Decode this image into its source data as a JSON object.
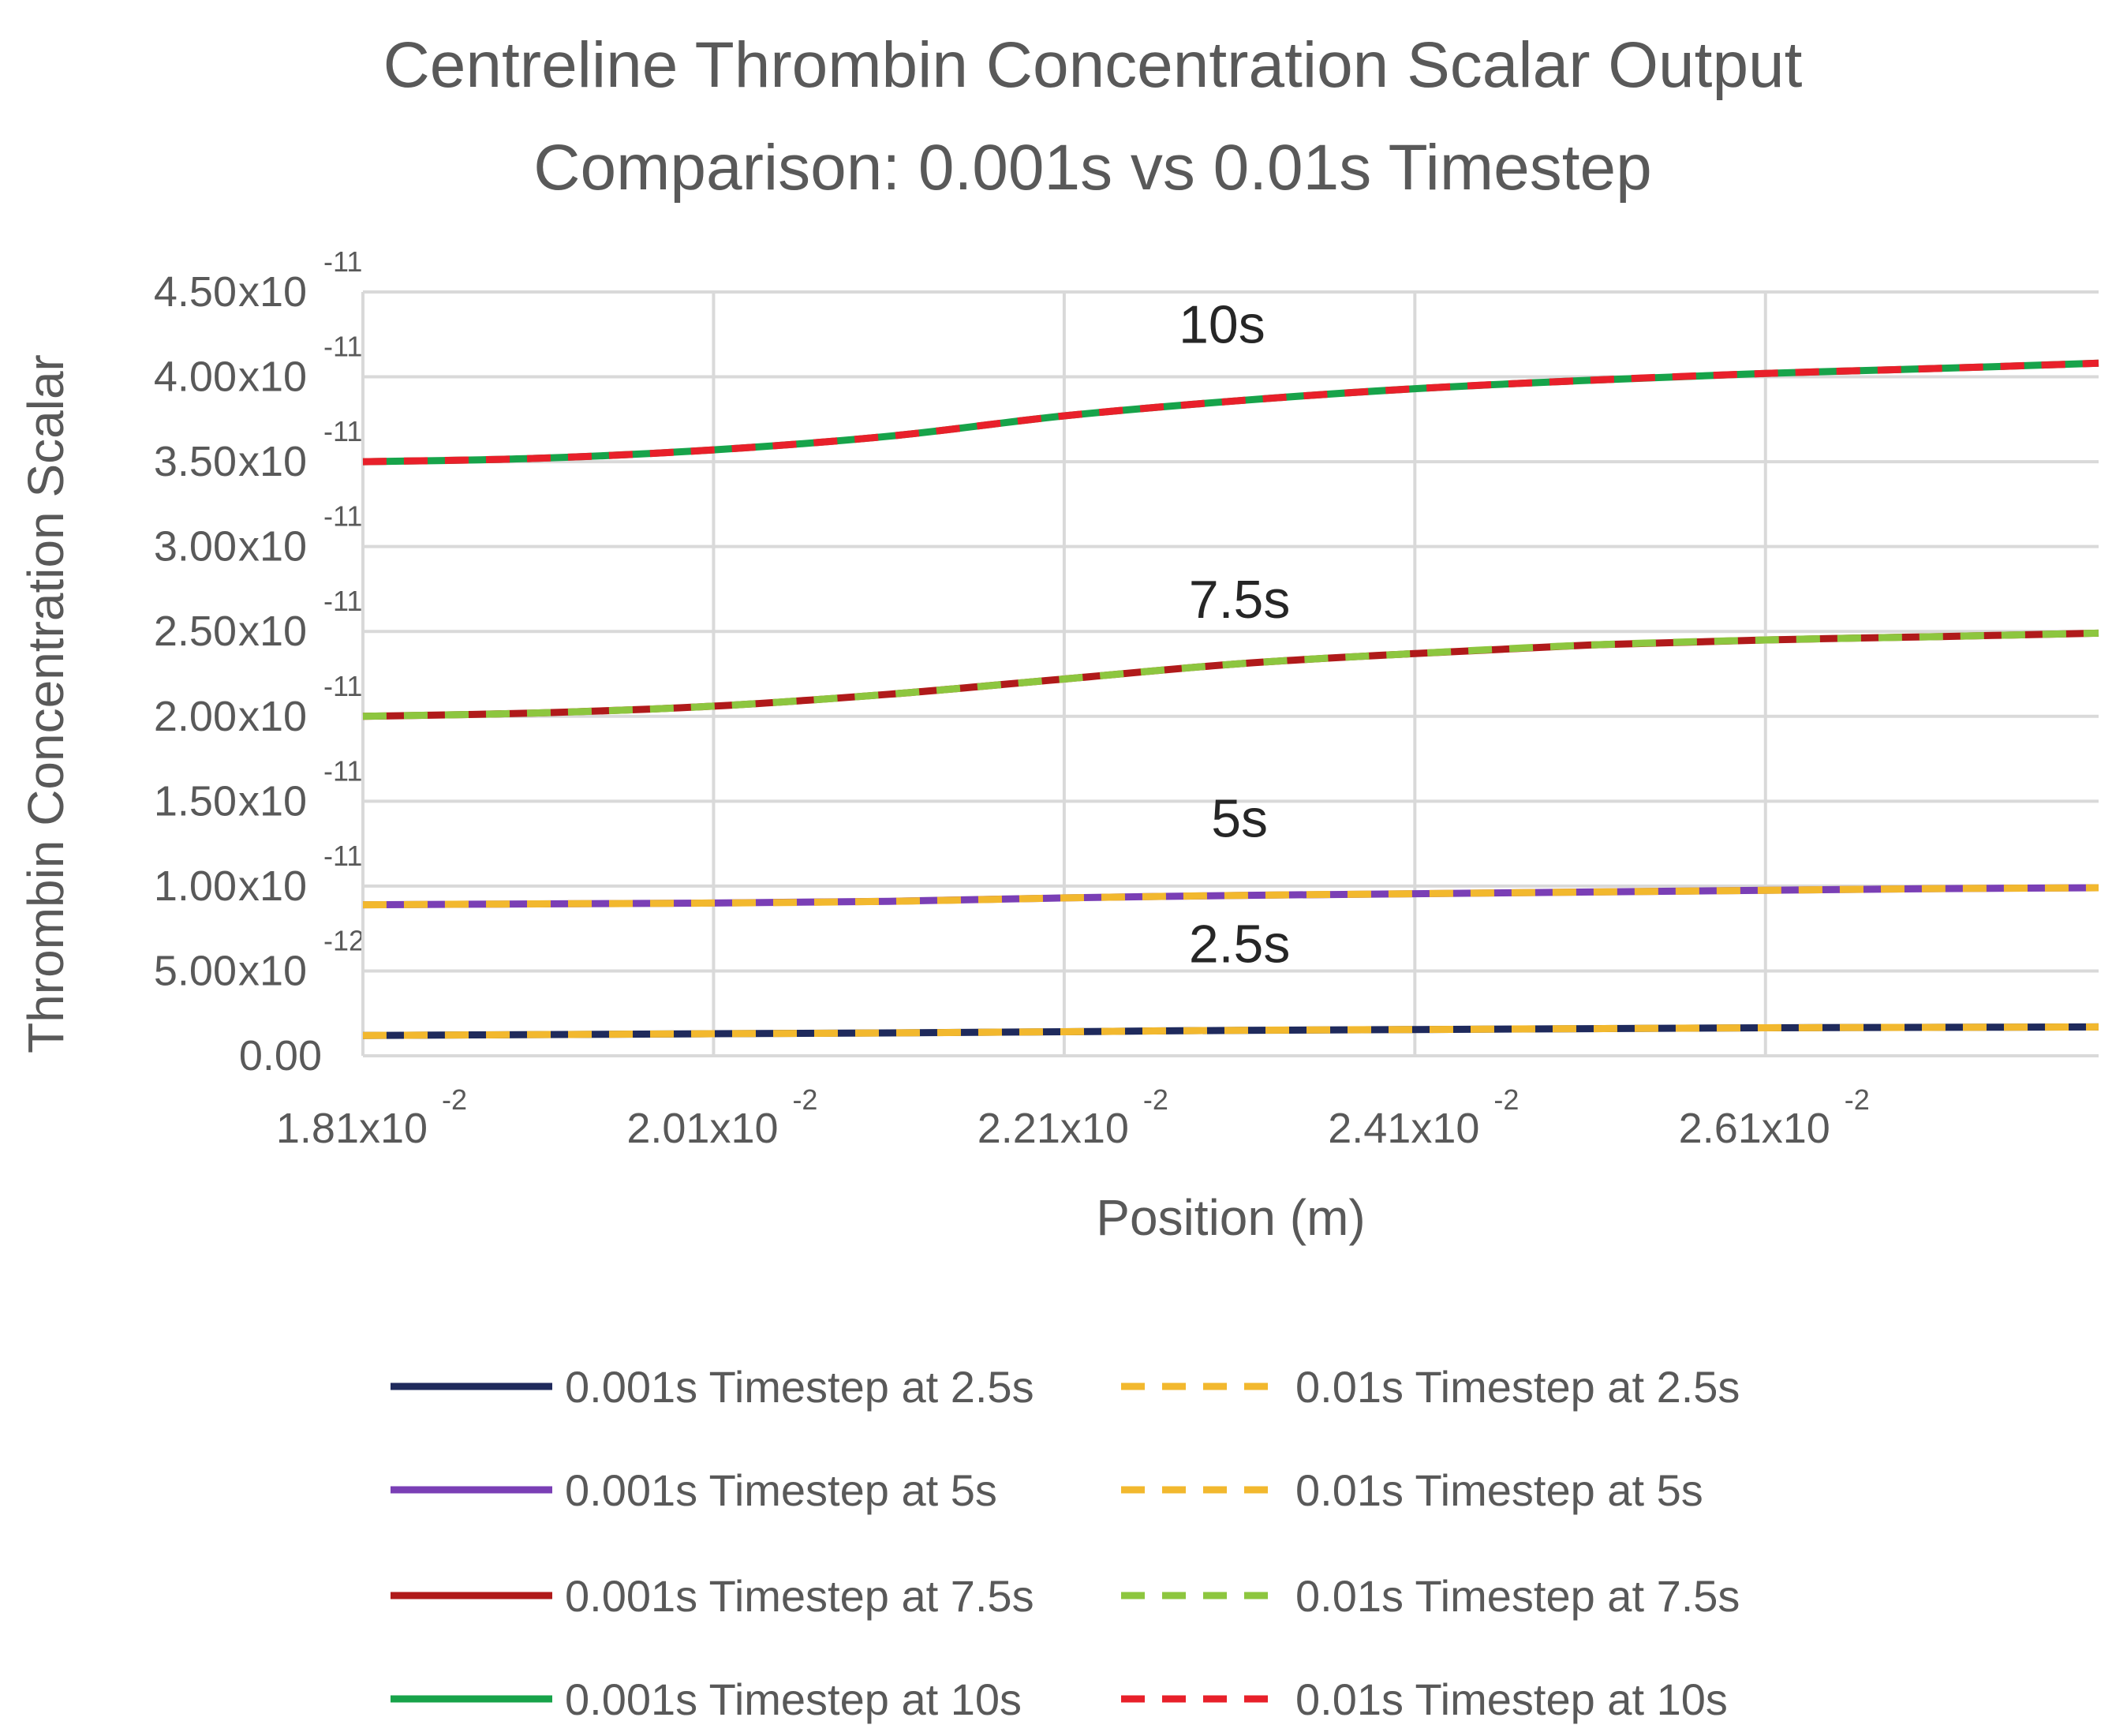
{
  "chart_data": {
    "type": "line",
    "title_lines": [
      "Centreline Thrombin Concentration Scalar Output",
      "Comparison: 0.001s vs 0.01s Timestep"
    ],
    "xlabel": "Position (m)",
    "ylabel": "Thrombin Concentration Scalar",
    "xlim": [
      0.0181,
      0.028
    ],
    "ylim": [
      0,
      4.5e-11
    ],
    "x_ticks": [
      {
        "value": 0.0181,
        "mantissa": "1.81",
        "base": "x10",
        "exp": "-2"
      },
      {
        "value": 0.0201,
        "mantissa": "2.01",
        "base": "x10",
        "exp": "-2"
      },
      {
        "value": 0.0221,
        "mantissa": "2.21",
        "base": "x10",
        "exp": "-2"
      },
      {
        "value": 0.0241,
        "mantissa": "2.41",
        "base": "x10",
        "exp": "-2"
      },
      {
        "value": 0.0261,
        "mantissa": "2.61",
        "base": "x10",
        "exp": "-2"
      }
    ],
    "y_ticks": [
      {
        "value": 0,
        "mantissa": "0.00",
        "base": "",
        "exp": ""
      },
      {
        "value": 5e-12,
        "mantissa": "5.00",
        "base": "x10",
        "exp": "-12"
      },
      {
        "value": 1e-11,
        "mantissa": "1.00",
        "base": "x10",
        "exp": "-11"
      },
      {
        "value": 1.5e-11,
        "mantissa": "1.50",
        "base": "x10",
        "exp": "-11"
      },
      {
        "value": 2e-11,
        "mantissa": "2.00",
        "base": "x10",
        "exp": "-11"
      },
      {
        "value": 2.5e-11,
        "mantissa": "2.50",
        "base": "x10",
        "exp": "-11"
      },
      {
        "value": 3e-11,
        "mantissa": "3.00",
        "base": "x10",
        "exp": "-11"
      },
      {
        "value": 3.5e-11,
        "mantissa": "3.50",
        "base": "x10",
        "exp": "-11"
      },
      {
        "value": 4e-11,
        "mantissa": "4.00",
        "base": "x10",
        "exp": "-11"
      },
      {
        "value": 4.5e-11,
        "mantissa": "4.50",
        "base": "x10",
        "exp": "-11"
      }
    ],
    "grid": true,
    "x": [
      0.0181,
      0.0191,
      0.0201,
      0.0211,
      0.0221,
      0.0231,
      0.0241,
      0.0251,
      0.0261,
      0.0271,
      0.028
    ],
    "series": [
      {
        "name": "0.001s Timestep at 2.5s",
        "color": "#1f2a5c",
        "dash": false,
        "values": [
          1.2e-12,
          1.25e-12,
          1.3e-12,
          1.35e-12,
          1.42e-12,
          1.5e-12,
          1.55e-12,
          1.6e-12,
          1.65e-12,
          1.68e-12,
          1.7e-12
        ]
      },
      {
        "name": "0.01s Timestep at 2.5s",
        "color": "#f2b82e",
        "dash": true,
        "values": [
          1.2e-12,
          1.25e-12,
          1.3e-12,
          1.35e-12,
          1.42e-12,
          1.5e-12,
          1.55e-12,
          1.6e-12,
          1.65e-12,
          1.68e-12,
          1.7e-12
        ]
      },
      {
        "name": "0.001s Timestep at 5s",
        "color": "#7a3fb5",
        "dash": false,
        "values": [
          8.9e-12,
          8.95e-12,
          9e-12,
          9.1e-12,
          9.3e-12,
          9.45e-12,
          9.55e-12,
          9.65e-12,
          9.75e-12,
          9.85e-12,
          9.9e-12
        ]
      },
      {
        "name": "0.01s Timestep at 5s",
        "color": "#f2b82e",
        "dash": true,
        "values": [
          8.9e-12,
          8.95e-12,
          9e-12,
          9.1e-12,
          9.3e-12,
          9.45e-12,
          9.55e-12,
          9.65e-12,
          9.75e-12,
          9.85e-12,
          9.9e-12
        ]
      },
      {
        "name": "0.001s Timestep at 7.5s",
        "color": "#b01a1a",
        "dash": false,
        "values": [
          2e-11,
          2.02e-11,
          2.06e-11,
          2.13e-11,
          2.22e-11,
          2.31e-11,
          2.37e-11,
          2.42e-11,
          2.45e-11,
          2.47e-11,
          2.49e-11
        ]
      },
      {
        "name": "0.01s Timestep at 7.5s",
        "color": "#8dc63f",
        "dash": true,
        "values": [
          2e-11,
          2.02e-11,
          2.06e-11,
          2.13e-11,
          2.22e-11,
          2.31e-11,
          2.37e-11,
          2.42e-11,
          2.45e-11,
          2.47e-11,
          2.49e-11
        ]
      },
      {
        "name": "0.001s Timestep at 10s",
        "color": "#17a34a",
        "dash": false,
        "values": [
          3.5e-11,
          3.52e-11,
          3.57e-11,
          3.65e-11,
          3.77e-11,
          3.86e-11,
          3.93e-11,
          3.98e-11,
          4.02e-11,
          4.05e-11,
          4.08e-11
        ]
      },
      {
        "name": "0.01s Timestep at 10s",
        "color": "#e8202a",
        "dash": true,
        "values": [
          3.5e-11,
          3.52e-11,
          3.57e-11,
          3.65e-11,
          3.77e-11,
          3.86e-11,
          3.93e-11,
          3.98e-11,
          4.02e-11,
          4.05e-11,
          4.08e-11
        ]
      }
    ],
    "annotations": [
      {
        "text": "10s",
        "x": 0.023,
        "y": 4.2e-11
      },
      {
        "text": "7.5s",
        "x": 0.0231,
        "y": 2.58e-11
      },
      {
        "text": "5s",
        "x": 0.0231,
        "y": 1.29e-11
      },
      {
        "text": "2.5s",
        "x": 0.0231,
        "y": 5.5e-12
      }
    ],
    "legend": {
      "placement": "bottom",
      "columns": 2
    }
  }
}
